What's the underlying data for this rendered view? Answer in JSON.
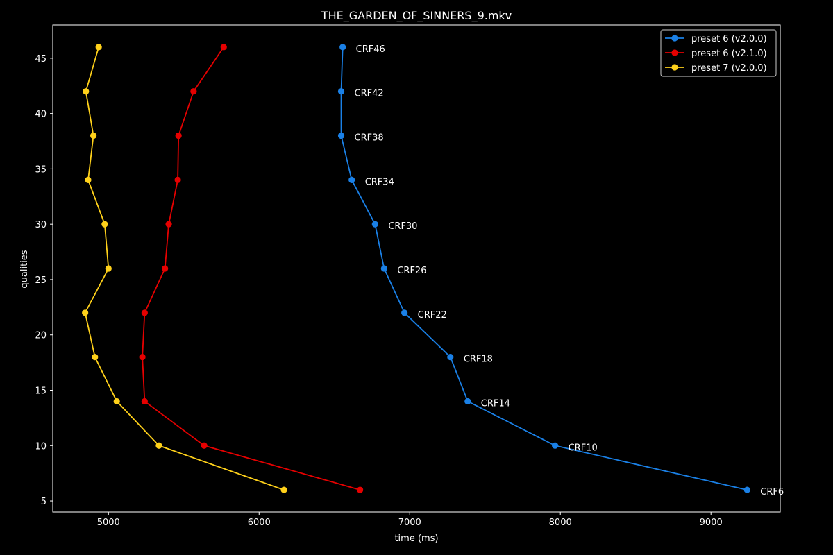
{
  "chart_data": {
    "type": "line",
    "title": "THE_GARDEN_OF_SINNERS_9.mkv",
    "xlabel": "time (ms)",
    "ylabel": "qualities",
    "xlim": [
      4630,
      9460
    ],
    "ylim": [
      4,
      48
    ],
    "xticks": [
      5000,
      6000,
      7000,
      8000,
      9000
    ],
    "yticks": [
      5,
      10,
      15,
      20,
      25,
      30,
      35,
      40,
      45
    ],
    "legend_position": "top-right",
    "series": [
      {
        "name": "preset 6 (v2.0.0)",
        "color": "#1a80e6",
        "points": [
          {
            "x": 6555,
            "y": 46,
            "label": "CRF46"
          },
          {
            "x": 6545,
            "y": 42,
            "label": "CRF42"
          },
          {
            "x": 6545,
            "y": 38,
            "label": "CRF38"
          },
          {
            "x": 6615,
            "y": 34,
            "label": "CRF34"
          },
          {
            "x": 6770,
            "y": 30,
            "label": "CRF30"
          },
          {
            "x": 6830,
            "y": 26,
            "label": "CRF26"
          },
          {
            "x": 6965,
            "y": 22,
            "label": "CRF22"
          },
          {
            "x": 7270,
            "y": 18,
            "label": "CRF18"
          },
          {
            "x": 7385,
            "y": 14,
            "label": "CRF14"
          },
          {
            "x": 7965,
            "y": 10,
            "label": "CRF10"
          },
          {
            "x": 9240,
            "y": 6,
            "label": "CRF6"
          }
        ]
      },
      {
        "name": "preset 6 (v2.1.0)",
        "color": "#e60000",
        "points": [
          {
            "x": 5765,
            "y": 46
          },
          {
            "x": 5565,
            "y": 42
          },
          {
            "x": 5465,
            "y": 38
          },
          {
            "x": 5460,
            "y": 34
          },
          {
            "x": 5400,
            "y": 30
          },
          {
            "x": 5375,
            "y": 26
          },
          {
            "x": 5240,
            "y": 22
          },
          {
            "x": 5225,
            "y": 18
          },
          {
            "x": 5240,
            "y": 14
          },
          {
            "x": 5635,
            "y": 10
          },
          {
            "x": 6670,
            "y": 6
          }
        ]
      },
      {
        "name": "preset 7 (v2.0.0)",
        "color": "#ffd11a",
        "points": [
          {
            "x": 4935,
            "y": 46
          },
          {
            "x": 4850,
            "y": 42
          },
          {
            "x": 4900,
            "y": 38
          },
          {
            "x": 4865,
            "y": 34
          },
          {
            "x": 4975,
            "y": 30
          },
          {
            "x": 5000,
            "y": 26
          },
          {
            "x": 4845,
            "y": 22
          },
          {
            "x": 4910,
            "y": 18
          },
          {
            "x": 5055,
            "y": 14
          },
          {
            "x": 5335,
            "y": 10
          },
          {
            "x": 6165,
            "y": 6
          }
        ]
      }
    ]
  }
}
